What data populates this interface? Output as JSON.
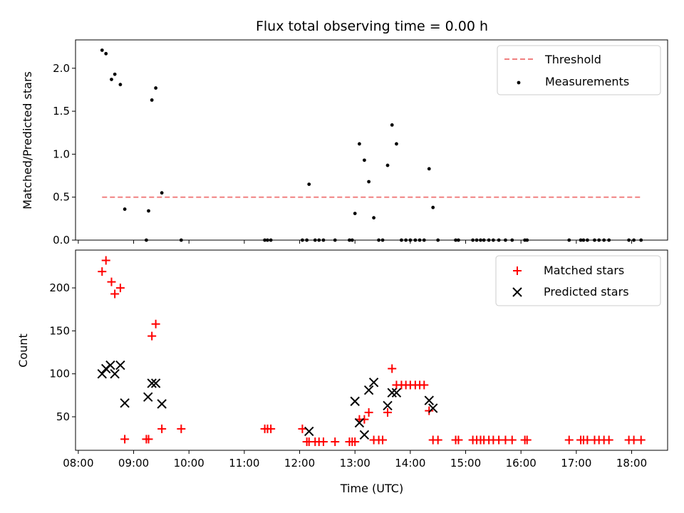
{
  "chart_data": [
    {
      "type": "scatter",
      "panel": "top",
      "title": "Flux total observing time = 0.00 h",
      "xlabel": "",
      "ylabel": "Matched/Predicted stars",
      "xlim": [
        7.95,
        18.65
      ],
      "ylim": [
        0.0,
        2.33
      ],
      "yticks": [
        0.0,
        0.5,
        1.0,
        1.5,
        2.0
      ],
      "ytick_labels": [
        "0.0",
        "0.5",
        "1.0",
        "1.5",
        "2.0"
      ],
      "xticks": [
        8,
        9,
        10,
        11,
        12,
        13,
        14,
        15,
        16,
        17,
        18
      ],
      "grid": false,
      "legend_position": "top-right",
      "colors": {
        "threshold": "#f08080",
        "measurements": "#000000"
      },
      "series": [
        {
          "name": "Threshold",
          "kind": "line",
          "x": [
            8.43,
            18.17
          ],
          "y": [
            0.5,
            0.5
          ]
        },
        {
          "name": "Measurements",
          "kind": "points",
          "x": [
            8.43,
            8.5,
            8.6,
            8.66,
            8.76,
            8.84,
            9.23,
            9.27,
            9.33,
            9.4,
            9.51,
            9.86,
            11.37,
            11.42,
            11.48,
            12.05,
            12.13,
            12.17,
            12.28,
            12.35,
            12.43,
            12.64,
            12.9,
            12.95,
            13.0,
            13.08,
            13.17,
            13.25,
            13.34,
            13.43,
            13.5,
            13.59,
            13.67,
            13.75,
            13.84,
            13.92,
            14.0,
            14.09,
            14.17,
            14.25,
            14.34,
            14.41,
            14.5,
            14.82,
            14.87,
            15.13,
            15.2,
            15.27,
            15.33,
            15.42,
            15.5,
            15.6,
            15.72,
            15.84,
            16.07,
            16.11,
            16.87,
            17.08,
            17.13,
            17.2,
            17.33,
            17.41,
            17.5,
            17.59,
            17.95,
            18.04,
            18.17
          ],
          "y": [
            2.21,
            2.17,
            1.87,
            1.93,
            1.81,
            0.36,
            0.0,
            0.34,
            1.63,
            1.77,
            0.55,
            0.0,
            0.0,
            0.0,
            0.0,
            0.0,
            0.0,
            0.65,
            0.0,
            0.0,
            0.0,
            0.0,
            0.0,
            0.0,
            0.31,
            1.12,
            0.93,
            0.68,
            0.26,
            0.0,
            0.0,
            0.87,
            1.34,
            1.12,
            0.0,
            0.0,
            0.0,
            0.0,
            0.0,
            0.0,
            0.83,
            0.38,
            0.0,
            0.0,
            0.0,
            0.0,
            0.0,
            0.0,
            0.0,
            0.0,
            0.0,
            0.0,
            0.0,
            0.0,
            0.0,
            0.0,
            0.0,
            0.0,
            0.0,
            0.0,
            0.0,
            0.0,
            0.0,
            0.0,
            0.0,
            0.0,
            0.0
          ]
        }
      ]
    },
    {
      "type": "scatter",
      "panel": "bottom",
      "title": "",
      "xlabel": "Time (UTC)",
      "ylabel": "Count",
      "xlim": [
        7.95,
        18.65
      ],
      "ylim": [
        11,
        244
      ],
      "yticks": [
        50,
        100,
        150,
        200
      ],
      "ytick_labels": [
        "50",
        "100",
        "150",
        "200"
      ],
      "xticks": [
        8,
        9,
        10,
        11,
        12,
        13,
        14,
        15,
        16,
        17,
        18
      ],
      "xtick_labels": [
        "08:00",
        "09:00",
        "10:00",
        "11:00",
        "12:00",
        "13:00",
        "14:00",
        "15:00",
        "16:00",
        "17:00",
        "18:00"
      ],
      "grid": false,
      "legend_position": "top-right",
      "colors": {
        "matched": "#ff0000",
        "predicted": "#000000"
      },
      "series": [
        {
          "name": "Matched stars",
          "marker": "plus",
          "x": [
            8.43,
            8.5,
            8.6,
            8.66,
            8.76,
            8.84,
            9.23,
            9.27,
            9.33,
            9.4,
            9.51,
            9.86,
            11.37,
            11.42,
            11.48,
            12.05,
            12.13,
            12.17,
            12.28,
            12.35,
            12.43,
            12.64,
            12.9,
            12.95,
            13.0,
            13.08,
            13.17,
            13.25,
            13.34,
            13.43,
            13.5,
            13.59,
            13.67,
            13.75,
            13.84,
            13.92,
            14.0,
            14.09,
            14.17,
            14.25,
            14.34,
            14.41,
            14.5,
            14.82,
            14.87,
            15.13,
            15.2,
            15.27,
            15.33,
            15.42,
            15.5,
            15.6,
            15.72,
            15.84,
            16.07,
            16.11,
            16.87,
            17.08,
            17.13,
            17.2,
            17.33,
            17.41,
            17.5,
            17.59,
            17.95,
            18.04,
            18.17
          ],
          "y": [
            219,
            232,
            207,
            193,
            200,
            24,
            24,
            24,
            144,
            158,
            36,
            36,
            36,
            36,
            36,
            36,
            21,
            21,
            21,
            21,
            21,
            21,
            21,
            21,
            21,
            47,
            47,
            55,
            23,
            23,
            23,
            55,
            106,
            87,
            87,
            87,
            87,
            87,
            87,
            87,
            57,
            23,
            23,
            23,
            23,
            23,
            23,
            23,
            23,
            23,
            23,
            23,
            23,
            23,
            23,
            23,
            23,
            23,
            23,
            23,
            23,
            23,
            23,
            23,
            23,
            23,
            23
          ]
        },
        {
          "name": "Predicted stars",
          "marker": "x",
          "x": [
            8.43,
            8.5,
            8.58,
            8.66,
            8.76,
            8.84,
            9.26,
            9.33,
            9.4,
            9.51,
            12.17,
            13.0,
            13.08,
            13.17,
            13.25,
            13.34,
            13.59,
            13.67,
            13.75,
            14.34,
            14.41
          ],
          "y": [
            100,
            106,
            110,
            100,
            110,
            66,
            73,
            89,
            89,
            65,
            33,
            68,
            43,
            29,
            81,
            90,
            63,
            78,
            78,
            69,
            60
          ]
        }
      ]
    }
  ]
}
